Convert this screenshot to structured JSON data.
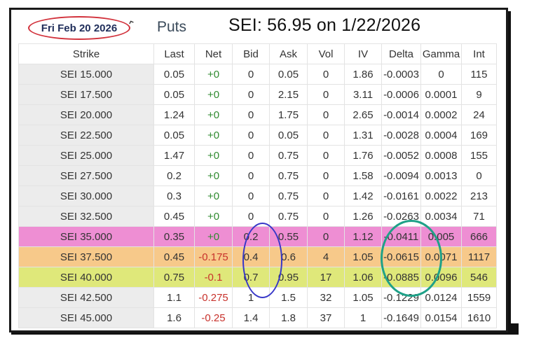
{
  "header": {
    "expiry_date": "Fri Feb 20 2026",
    "section_title": "Puts",
    "underlying_text": "SEI: 56.95 on   1/22/2026"
  },
  "colors": {
    "highlight_pink": "#ee8ed3",
    "highlight_orange": "#f7c98a",
    "highlight_yellow": "#dfe87a",
    "positive_net": "#2f8a2f",
    "negative_net": "#c8322c",
    "date_circle": "#d2323c",
    "bid_circle": "#3737c8",
    "delta_circle": "#1fa188"
  },
  "table": {
    "columns": [
      "Strike",
      "Last",
      "Net",
      "Bid",
      "Ask",
      "Vol",
      "IV",
      "Delta",
      "Gamma",
      "Int"
    ],
    "rows": [
      {
        "strike": "SEI 15.000",
        "last": "0.05",
        "net": "+0",
        "bid": "0",
        "ask": "0.05",
        "vol": "0",
        "iv": "1.86",
        "delta": "-0.0003",
        "gamma": "0",
        "int": "115",
        "highlight": ""
      },
      {
        "strike": "SEI 17.500",
        "last": "0.05",
        "net": "+0",
        "bid": "0",
        "ask": "2.15",
        "vol": "0",
        "iv": "3.11",
        "delta": "-0.0006",
        "gamma": "0.0001",
        "int": "9",
        "highlight": ""
      },
      {
        "strike": "SEI 20.000",
        "last": "1.24",
        "net": "+0",
        "bid": "0",
        "ask": "1.75",
        "vol": "0",
        "iv": "2.65",
        "delta": "-0.0014",
        "gamma": "0.0002",
        "int": "24",
        "highlight": ""
      },
      {
        "strike": "SEI 22.500",
        "last": "0.05",
        "net": "+0",
        "bid": "0",
        "ask": "0.05",
        "vol": "0",
        "iv": "1.31",
        "delta": "-0.0028",
        "gamma": "0.0004",
        "int": "169",
        "highlight": ""
      },
      {
        "strike": "SEI 25.000",
        "last": "1.47",
        "net": "+0",
        "bid": "0",
        "ask": "0.75",
        "vol": "0",
        "iv": "1.76",
        "delta": "-0.0052",
        "gamma": "0.0008",
        "int": "155",
        "highlight": ""
      },
      {
        "strike": "SEI 27.500",
        "last": "0.2",
        "net": "+0",
        "bid": "0",
        "ask": "0.75",
        "vol": "0",
        "iv": "1.58",
        "delta": "-0.0094",
        "gamma": "0.0013",
        "int": "0",
        "highlight": ""
      },
      {
        "strike": "SEI 30.000",
        "last": "0.3",
        "net": "+0",
        "bid": "0",
        "ask": "0.75",
        "vol": "0",
        "iv": "1.42",
        "delta": "-0.0161",
        "gamma": "0.0022",
        "int": "213",
        "highlight": ""
      },
      {
        "strike": "SEI 32.500",
        "last": "0.45",
        "net": "+0",
        "bid": "0",
        "ask": "0.75",
        "vol": "0",
        "iv": "1.26",
        "delta": "-0.0263",
        "gamma": "0.0034",
        "int": "71",
        "highlight": ""
      },
      {
        "strike": "SEI 35.000",
        "last": "0.35",
        "net": "+0",
        "bid": "0.2",
        "ask": "0.55",
        "vol": "0",
        "iv": "1.12",
        "delta": "-0.0411",
        "gamma": "0.005",
        "int": "666",
        "highlight": "pink"
      },
      {
        "strike": "SEI 37.500",
        "last": "0.45",
        "net": "-0.175",
        "bid": "0.4",
        "ask": "0.6",
        "vol": "4",
        "iv": "1.05",
        "delta": "-0.0615",
        "gamma": "0.0071",
        "int": "1117",
        "highlight": "orange"
      },
      {
        "strike": "SEI 40.000",
        "last": "0.75",
        "net": "-0.1",
        "bid": "0.7",
        "ask": "0.95",
        "vol": "17",
        "iv": "1.06",
        "delta": "-0.0885",
        "gamma": "0.0096",
        "int": "546",
        "highlight": "yellow"
      },
      {
        "strike": "SEI 42.500",
        "last": "1.1",
        "net": "-0.275",
        "bid": "1",
        "ask": "1.5",
        "vol": "32",
        "iv": "1.05",
        "delta": "-0.1229",
        "gamma": "0.0124",
        "int": "1559",
        "highlight": ""
      },
      {
        "strike": "SEI 45.000",
        "last": "1.6",
        "net": "-0.25",
        "bid": "1.4",
        "ask": "1.8",
        "vol": "37",
        "iv": "1",
        "delta": "-0.1649",
        "gamma": "0.0154",
        "int": "1610",
        "highlight": ""
      }
    ]
  }
}
